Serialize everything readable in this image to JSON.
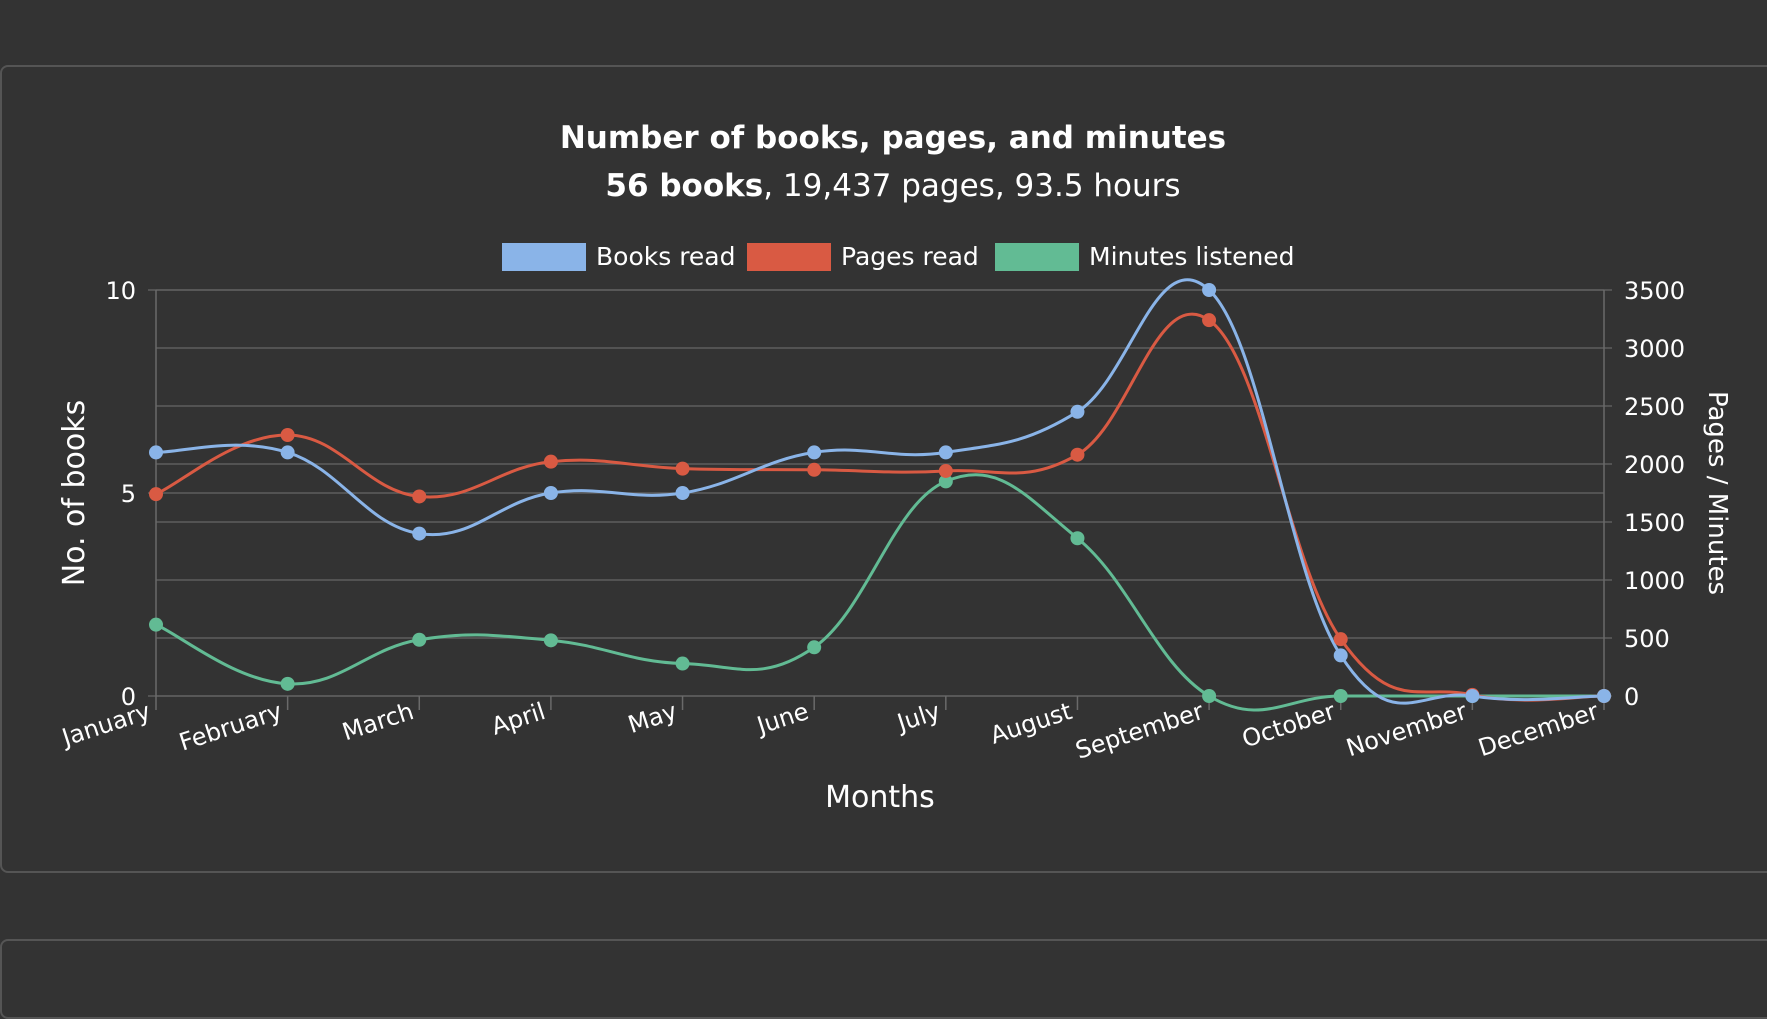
{
  "chart_data": {
    "type": "line",
    "title": "Number of books, pages, and minutes",
    "subtitle": {
      "books": "56 books",
      "rest": ", 19,437 pages, 93.5 hours"
    },
    "xlabel": "Months",
    "ylabel_left": "No. of books",
    "ylabel_right": "Pages / Minutes",
    "categories": [
      "January",
      "February",
      "March",
      "April",
      "May",
      "June",
      "July",
      "August",
      "September",
      "October",
      "November",
      "December"
    ],
    "y_left": {
      "min": 0,
      "max": 10,
      "ticks": [
        "0",
        "5",
        "10"
      ]
    },
    "y_right": {
      "min": 0,
      "max": 3500,
      "ticks": [
        "0",
        "500",
        "1000",
        "1500",
        "2000",
        "2500",
        "3000",
        "3500"
      ]
    },
    "legend_position": "top",
    "grid": true,
    "series": [
      {
        "name": "Books read",
        "axis": "left",
        "color": "#8ab4e8",
        "values": [
          6,
          6,
          4,
          5,
          5,
          6,
          6,
          7,
          10,
          1,
          0,
          0
        ]
      },
      {
        "name": "Pages read",
        "axis": "right",
        "color": "#d95a43",
        "values": [
          1740,
          2250,
          1720,
          2020,
          1960,
          1950,
          1940,
          2080,
          3240,
          490,
          10,
          0
        ]
      },
      {
        "name": "Minutes listened",
        "axis": "right",
        "color": "#62bb94",
        "values": [
          615,
          105,
          485,
          480,
          280,
          420,
          1850,
          1360,
          0,
          0,
          0,
          0
        ]
      }
    ]
  }
}
